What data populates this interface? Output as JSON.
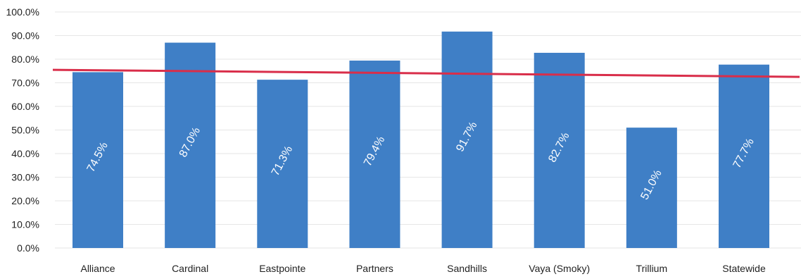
{
  "chart_data": {
    "type": "bar",
    "title": "",
    "xlabel": "",
    "ylabel": "",
    "categories": [
      "Alliance",
      "Cardinal",
      "Eastpointe",
      "Partners",
      "Sandhills",
      "Vaya (Smoky)",
      "Trillium",
      "Statewide"
    ],
    "values": [
      74.5,
      87.0,
      71.3,
      79.4,
      91.7,
      82.7,
      51.0,
      77.7
    ],
    "data_labels": [
      "74.5%",
      "87.0%",
      "71.3%",
      "79.4%",
      "91.7%",
      "82.7%",
      "51.0%",
      "77.7%"
    ],
    "ylim": [
      0,
      100
    ],
    "yticks": [
      0,
      10,
      20,
      30,
      40,
      50,
      60,
      70,
      80,
      90,
      100
    ],
    "ytick_labels": [
      "0.0%",
      "10.0%",
      "20.0%",
      "30.0%",
      "40.0%",
      "50.0%",
      "60.0%",
      "70.0%",
      "80.0%",
      "90.0%",
      "100.0%"
    ],
    "grid": true,
    "reference_line": {
      "start_value": 75.5,
      "end_value": 72.5
    },
    "colors": {
      "bar": "#3f7fc6",
      "reference_line": "#d92e4a",
      "grid": "#e6e6e6"
    }
  }
}
